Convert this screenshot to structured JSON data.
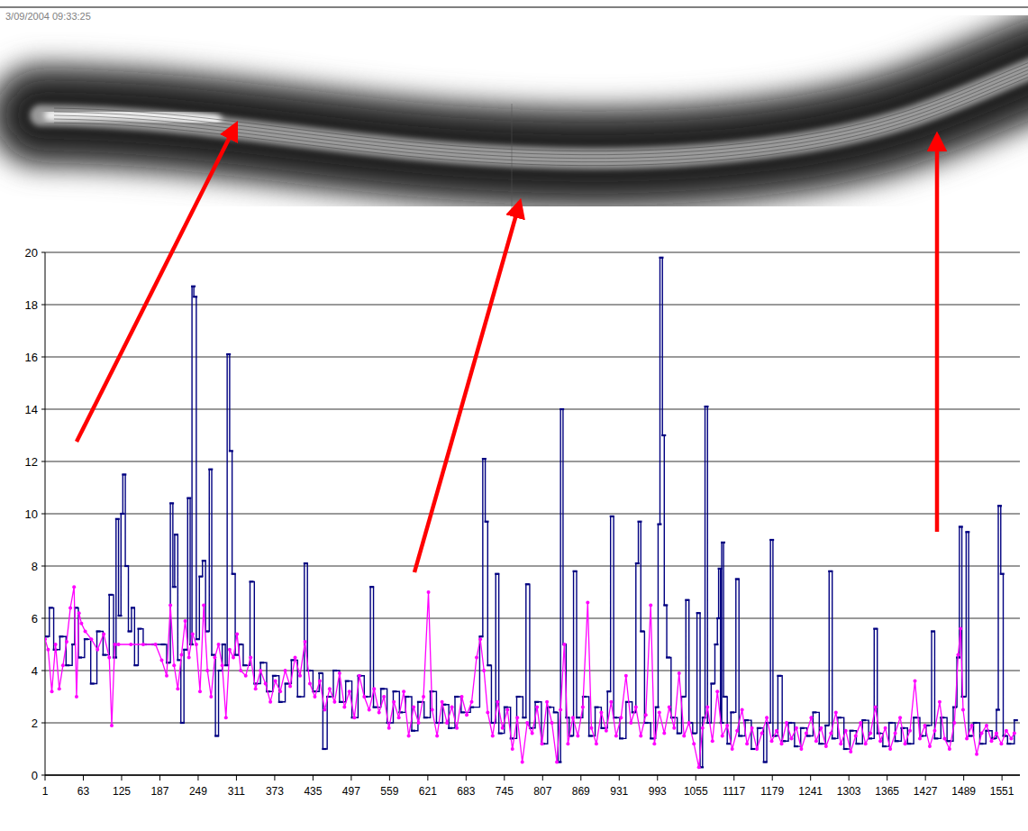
{
  "chart_data": {
    "type": "line",
    "annotations": [
      "3/09/2004 09:33:25"
    ],
    "xlim": [
      1,
      1580
    ],
    "xticks": [
      1,
      63,
      125,
      187,
      249,
      311,
      373,
      435,
      497,
      559,
      621,
      683,
      745,
      807,
      869,
      931,
      993,
      1055,
      1117,
      1179,
      1241,
      1303,
      1365,
      1427,
      1489,
      1551
    ],
    "ylim": [
      0,
      20
    ],
    "yticks": [
      0,
      2,
      4,
      6,
      8,
      10,
      12,
      14,
      16,
      18,
      20
    ],
    "grid": true,
    "series": [
      {
        "color": "#000080",
        "marker": "dash",
        "line_style": "step",
        "x": [
          1,
          8,
          15,
          25,
          35,
          45,
          49,
          55,
          65,
          75,
          85,
          95,
          105,
          112,
          116,
          120,
          124,
          127,
          131,
          136,
          141,
          146,
          152,
          160,
          175,
          190,
          198,
          204,
          208,
          211,
          216,
          221,
          226,
          232,
          236,
          239,
          242,
          246,
          251,
          256,
          261,
          267,
          271,
          277,
          282,
          288,
          293,
          296,
          300,
          304,
          309,
          315,
          322,
          333,
          340,
          350,
          360,
          370,
          380,
          390,
          400,
          410,
          421,
          426,
          435,
          445,
          451,
          458,
          468,
          478,
          488,
          498,
          508,
          518,
          528,
          533,
          545,
          555,
          565,
          575,
          585,
          595,
          605,
          615,
          625,
          635,
          645,
          655,
          665,
          675,
          690,
          705,
          710,
          714,
          718,
          724,
          731,
          736,
          745,
          755,
          765,
          775,
          780,
          786,
          795,
          805,
          815,
          825,
          832,
          836,
          840,
          845,
          850,
          857,
          862,
          872,
          882,
          892,
          902,
          912,
          917,
          922,
          932,
          942,
          952,
          958,
          962,
          966,
          972,
          982,
          990,
          994,
          997,
          1001,
          1004,
          1008,
          1015,
          1025,
          1032,
          1039,
          1044,
          1050,
          1057,
          1062,
          1066,
          1070,
          1074,
          1080,
          1086,
          1090,
          1092,
          1095,
          1097,
          1100,
          1106,
          1112,
          1120,
          1125,
          1135,
          1145,
          1155,
          1165,
          1170,
          1176,
          1180,
          1188,
          1195,
          1205,
          1215,
          1225,
          1235,
          1245,
          1255,
          1265,
          1271,
          1276,
          1285,
          1295,
          1305,
          1315,
          1325,
          1335,
          1344,
          1349,
          1358,
          1368,
          1378,
          1388,
          1398,
          1408,
          1418,
          1428,
          1437,
          1442,
          1452,
          1462,
          1472,
          1478,
          1482,
          1486,
          1493,
          1497,
          1505,
          1515,
          1525,
          1535,
          1542,
          1545,
          1549,
          1553,
          1560,
          1571
        ],
        "values": [
          5.3,
          6.4,
          4.8,
          5.3,
          4.2,
          5,
          6.4,
          4.5,
          5.2,
          3.5,
          5.5,
          4.6,
          6.9,
          4.5,
          9.8,
          6.1,
          10,
          11.5,
          8,
          5.5,
          6.4,
          4.2,
          5.6,
          5,
          5,
          5,
          4.3,
          10.4,
          7.2,
          9.2,
          4.4,
          2,
          4.8,
          10.6,
          5,
          18.7,
          18.3,
          5.2,
          7.6,
          8.2,
          5.5,
          11.7,
          4.6,
          1.5,
          4,
          5,
          4.2,
          16.1,
          12.4,
          7.7,
          4.6,
          5,
          4.2,
          7.4,
          3.5,
          4.3,
          3.2,
          3.8,
          2.8,
          3.5,
          4.4,
          3,
          8.1,
          4,
          3.2,
          3.9,
          1,
          3,
          4,
          2.8,
          3.6,
          2.2,
          3.8,
          3,
          7.2,
          2.6,
          3.3,
          2,
          3.2,
          2.4,
          3,
          1.7,
          2.8,
          2.2,
          3.2,
          2,
          2.7,
          1.8,
          3,
          2.4,
          2.6,
          5.3,
          12.1,
          9.7,
          4.2,
          2,
          7.7,
          1.6,
          2.6,
          1.4,
          3,
          2.2,
          7.3,
          1.8,
          2.8,
          1.2,
          2.6,
          2.4,
          0.5,
          14,
          5,
          2.2,
          1.5,
          7.8,
          2.2,
          3,
          1.5,
          2.6,
          1.8,
          3.2,
          9.9,
          2.2,
          1.4,
          2.8,
          2.4,
          8.1,
          9.7,
          5.5,
          2,
          1.4,
          2.6,
          9.6,
          19.8,
          13,
          6.5,
          4.5,
          2.2,
          1.6,
          3,
          6.7,
          2,
          1.6,
          6.2,
          0.3,
          2.2,
          14.1,
          2,
          3.5,
          5,
          6,
          7.9,
          2,
          8.9,
          3,
          1.2,
          2.4,
          7.5,
          1.5,
          2.1,
          1,
          1.8,
          0.5,
          2,
          9,
          1.5,
          3.8,
          1.3,
          2,
          1.1,
          1.8,
          1.5,
          2.4,
          1.2,
          1.9,
          7.8,
          1.4,
          2.2,
          1,
          1.7,
          1.2,
          2.1,
          1.4,
          5.6,
          1.6,
          1.1,
          2,
          1.3,
          1.8,
          1.2,
          2.2,
          1.5,
          1.9,
          5.5,
          1.4,
          2.2,
          1.3,
          2.6,
          4.5,
          9.5,
          3,
          9.3,
          1.5,
          2,
          1.2,
          1.7,
          1.4,
          2.5,
          10.3,
          7.7,
          1.5,
          1.2,
          2.1
        ]
      },
      {
        "color": "#ff00ff",
        "marker": "circle",
        "line_style": "solid",
        "x": [
          1,
          6,
          12,
          18,
          24,
          30,
          36,
          42,
          48,
          52,
          56,
          60,
          66,
          76,
          86,
          96,
          105,
          109,
          114,
          120,
          140,
          160,
          180,
          190,
          198,
          204,
          210,
          216,
          222,
          228,
          234,
          240,
          246,
          252,
          258,
          264,
          270,
          276,
          282,
          288,
          294,
          300,
          306,
          312,
          318,
          326,
          334,
          342,
          350,
          358,
          366,
          374,
          382,
          390,
          398,
          406,
          414,
          422,
          430,
          438,
          446,
          454,
          462,
          470,
          478,
          486,
          494,
          502,
          510,
          518,
          526,
          534,
          542,
          550,
          558,
          566,
          574,
          582,
          590,
          598,
          606,
          614,
          622,
          628,
          636,
          644,
          652,
          660,
          668,
          676,
          684,
          692,
          700,
          706,
          712,
          718,
          726,
          734,
          742,
          750,
          758,
          766,
          774,
          782,
          790,
          798,
          806,
          814,
          822,
          830,
          836,
          842,
          848,
          856,
          864,
          872,
          880,
          886,
          894,
          902,
          910,
          918,
          926,
          934,
          942,
          950,
          958,
          966,
          974,
          982,
          988,
          996,
          1004,
          1012,
          1020,
          1028,
          1036,
          1044,
          1052,
          1060,
          1066,
          1074,
          1082,
          1090,
          1098,
          1106,
          1114,
          1122,
          1130,
          1138,
          1146,
          1154,
          1162,
          1170,
          1178,
          1186,
          1194,
          1202,
          1210,
          1218,
          1226,
          1234,
          1242,
          1250,
          1258,
          1266,
          1274,
          1282,
          1290,
          1298,
          1306,
          1314,
          1322,
          1330,
          1338,
          1346,
          1354,
          1362,
          1370,
          1378,
          1386,
          1394,
          1402,
          1410,
          1418,
          1426,
          1434,
          1442,
          1450,
          1458,
          1466,
          1474,
          1480,
          1484,
          1488,
          1494,
          1502,
          1510,
          1518,
          1526,
          1534,
          1542,
          1550,
          1558,
          1566,
          1571
        ],
        "values": [
          5.2,
          4.8,
          3.2,
          5,
          3.3,
          4.2,
          5.1,
          6.4,
          7.2,
          3,
          6.2,
          5.8,
          5.5,
          5.2,
          4.8,
          5.4,
          4.5,
          1.9,
          5,
          5,
          5,
          5,
          5,
          4.4,
          3.8,
          6.5,
          4.2,
          3.3,
          4.6,
          5.9,
          4.5,
          5.4,
          5,
          3.2,
          6.5,
          4,
          3,
          4.5,
          5,
          4.2,
          2.2,
          4.8,
          4.5,
          5.4,
          4,
          3.8,
          4.5,
          3.3,
          4,
          3.5,
          2.8,
          3.6,
          3.2,
          4,
          3.4,
          4.5,
          3.8,
          5.1,
          3.5,
          3,
          3.6,
          2.5,
          3.3,
          2.8,
          3.9,
          2.6,
          3.2,
          2.2,
          3.8,
          3,
          2.5,
          3.3,
          2.4,
          3,
          1.8,
          2.8,
          2.2,
          3.2,
          1.5,
          2.6,
          2,
          3,
          7,
          2.5,
          1.5,
          2.8,
          2,
          2.6,
          1.8,
          3,
          2.3,
          2.8,
          4.5,
          5.2,
          4,
          2.4,
          1.5,
          2.8,
          1.8,
          2.5,
          1,
          2.2,
          0.5,
          2,
          1.6,
          2.6,
          1.2,
          2.8,
          2,
          0.5,
          2.5,
          5,
          1.2,
          2.2,
          1.5,
          2.6,
          6.6,
          1.8,
          1.2,
          2.4,
          1.7,
          2.8,
          1.5,
          2.2,
          3.8,
          2,
          2.6,
          1.5,
          2.3,
          6.5,
          1.2,
          2.4,
          1.6,
          2.6,
          1.8,
          3.9,
          1.5,
          2,
          1.2,
          0.3,
          1.8,
          2.6,
          1.3,
          3.2,
          1.5,
          1.9,
          1,
          1.7,
          2.5,
          1.2,
          1.8,
          1,
          1.6,
          2.2,
          1.3,
          1.7,
          1.2,
          2,
          1.4,
          1.8,
          1,
          1.6,
          2.2,
          1.3,
          1.8,
          1.1,
          1.6,
          2.4,
          1.2,
          1.7,
          0.9,
          1.5,
          2,
          1.2,
          1.6,
          2.6,
          1.3,
          1.8,
          1,
          1.6,
          2.2,
          1.2,
          1.7,
          3.6,
          1.4,
          1.9,
          1.1,
          1.7,
          2.8,
          1.4,
          1,
          2,
          4.6,
          5.6,
          2.5,
          1.4,
          1.9,
          0.8,
          1.6,
          1.9,
          1.3,
          1.6,
          1.2,
          1.7,
          1.4,
          1.6
        ]
      }
    ]
  }
}
